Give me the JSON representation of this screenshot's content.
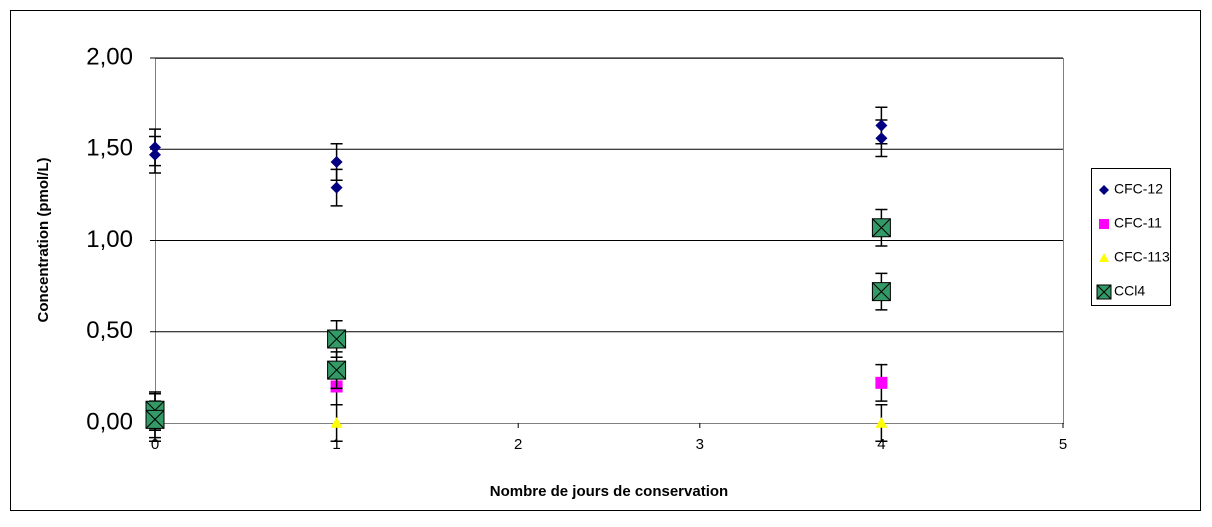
{
  "chart_data": {
    "type": "scatter",
    "xlabel": "Nombre de jours de conservation",
    "ylabel": "Concentration (pmol/L)",
    "xlim": [
      0,
      5
    ],
    "xticks": [
      0,
      1,
      2,
      3,
      4,
      5
    ],
    "ylim": [
      0,
      2
    ],
    "yticks": [
      {
        "value": 0,
        "label": "0,00"
      },
      {
        "value": 0.5,
        "label": "0,50"
      },
      {
        "value": 1,
        "label": "1,00"
      },
      {
        "value": 1.5,
        "label": "1,50"
      },
      {
        "value": 2,
        "label": "2,00"
      }
    ],
    "grid": true,
    "legend": "right",
    "series": [
      {
        "name": "CFC-12",
        "color": "#000080",
        "marker": "diamond",
        "x": [
          0,
          0,
          1,
          1,
          4,
          4
        ],
        "values": [
          1.51,
          1.47,
          1.43,
          1.29,
          1.63,
          1.56
        ],
        "errors": [
          0.1,
          0.1,
          0.1,
          0.1,
          0.1,
          0.1
        ]
      },
      {
        "name": "CFC-11",
        "color": "#ff00ff",
        "marker": "square",
        "x": [
          0,
          1,
          4
        ],
        "values": [
          0.06,
          0.2,
          0.22
        ],
        "errors": [
          0.1,
          0.1,
          0.1
        ]
      },
      {
        "name": "CFC-113",
        "color": "#ffff00",
        "marker": "triangle",
        "x": [
          0,
          1,
          4
        ],
        "values": [
          0,
          0,
          0
        ],
        "errors": [
          0.1,
          0.1,
          0.1
        ]
      },
      {
        "name": "CCl4",
        "color": "#339966",
        "marker": "xsquare",
        "x": [
          0,
          0,
          1,
          1,
          4,
          4
        ],
        "values": [
          0.07,
          0.02,
          0.46,
          0.29,
          1.07,
          0.72
        ],
        "errors": [
          0.1,
          0.1,
          0.1,
          0.1,
          0.1,
          0.1
        ]
      }
    ]
  }
}
